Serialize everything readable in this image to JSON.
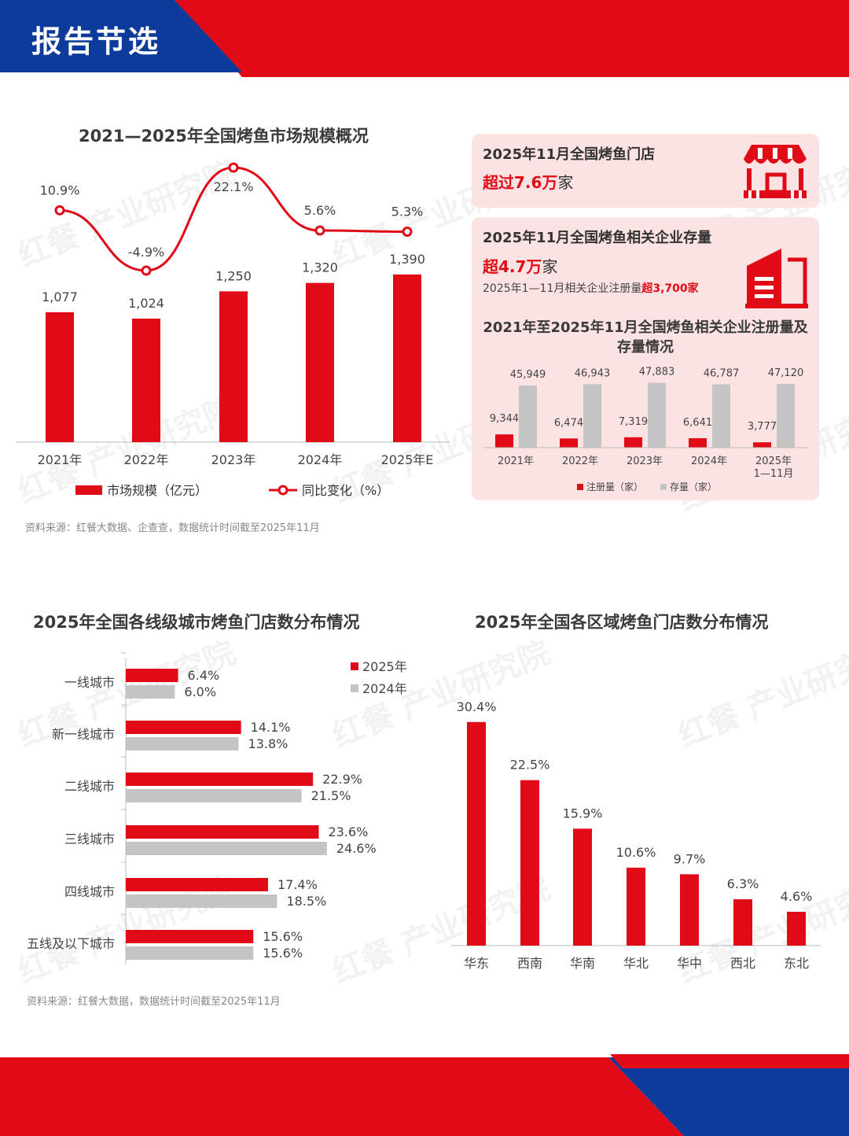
{
  "header": {
    "title": "报告节选"
  },
  "colors": {
    "red": "#e10b17",
    "blue": "#0c3b9c",
    "gray": "#c4c4c4",
    "panel": "#fbe3e4"
  },
  "market_section": {
    "title": "2021—2025年全国烤鱼市场规模概况",
    "source": "资料来源：红餐大数据、企查查，数据统计时间截至2025年11月"
  },
  "stats": {
    "stores_title": "2025年11月全国烤鱼门店",
    "stores_value_prefix": "超过7.6万",
    "stores_value_suffix": "家",
    "stores_icon": "storefront-icon",
    "enterprise_title": "2025年11月全国烤鱼相关企业存量",
    "enterprise_value_prefix": "超4.7万",
    "enterprise_value_suffix": "家",
    "enterprise_note_prefix": "2025年1—11月相关企业注册量",
    "enterprise_note_highlight": "超3,700家",
    "enterprise_icon": "building-icon"
  },
  "tier_section": {
    "title": "2025年全国各线级城市烤鱼门店数分布情况",
    "source": "资料来源：红餐大数据，数据统计时间截至2025年11月"
  },
  "region_section": {
    "title": "2025年全国各区域烤鱼门店数分布情况"
  },
  "watermark": {
    "text": "红餐 产业研究院"
  },
  "chart_data": [
    {
      "type": "bar",
      "categories": [
        "2021年",
        "2022年",
        "2023年",
        "2024年",
        "2025年E"
      ],
      "series": [
        {
          "name": "市场规模（亿元）",
          "kind": "bar",
          "values": [
            1077,
            1024,
            1250,
            1320,
            1390
          ],
          "labels": [
            "1,077",
            "1,024",
            "1,250",
            "1,320",
            "1,390"
          ]
        },
        {
          "name": "同比变化（%）",
          "kind": "line",
          "values": [
            10.9,
            -4.9,
            22.1,
            5.6,
            5.3
          ],
          "labels": [
            "10.9%",
            "-4.9%",
            "22.1%",
            "5.6%",
            "5.3%"
          ]
        }
      ],
      "legend": "bottom"
    },
    {
      "type": "bar",
      "title": "2021年至2025年11月全国烤鱼相关企业注册量及存量情况",
      "categories": [
        "2021年",
        "2022年",
        "2023年",
        "2024年",
        "2025年 1—11月"
      ],
      "series": [
        {
          "name": "注册量（家）",
          "values": [
            9344,
            6474,
            7319,
            6641,
            3777
          ],
          "labels": [
            "9,344",
            "6,474",
            "7,319",
            "6,641",
            "3,777"
          ]
        },
        {
          "name": "存量（家）",
          "values": [
            45949,
            46943,
            47883,
            46787,
            47120
          ],
          "labels": [
            "45,949",
            "46,943",
            "47,883",
            "46,787",
            "47,120"
          ]
        }
      ],
      "legend": "bottom"
    },
    {
      "type": "bar",
      "orientation": "horizontal",
      "categories": [
        "一线城市",
        "新一线城市",
        "二线城市",
        "三线城市",
        "四线城市",
        "五线及以下城市"
      ],
      "series": [
        {
          "name": "2025年",
          "values": [
            6.4,
            14.1,
            22.9,
            23.6,
            17.4,
            15.6
          ],
          "labels": [
            "6.4%",
            "14.1%",
            "22.9%",
            "23.6%",
            "17.4%",
            "15.6%"
          ]
        },
        {
          "name": "2024年",
          "values": [
            6.0,
            13.8,
            21.5,
            24.6,
            18.5,
            15.6
          ],
          "labels": [
            "6.0%",
            "13.8%",
            "21.5%",
            "24.6%",
            "18.5%",
            "15.6%"
          ]
        }
      ],
      "legend": "top-right"
    },
    {
      "type": "bar",
      "categories": [
        "华东",
        "西南",
        "华南",
        "华北",
        "华中",
        "西北",
        "东北"
      ],
      "values": [
        30.4,
        22.5,
        15.9,
        10.6,
        9.7,
        6.3,
        4.6
      ],
      "labels": [
        "30.4%",
        "22.5%",
        "15.9%",
        "10.6%",
        "9.7%",
        "6.3%",
        "4.6%"
      ]
    }
  ]
}
